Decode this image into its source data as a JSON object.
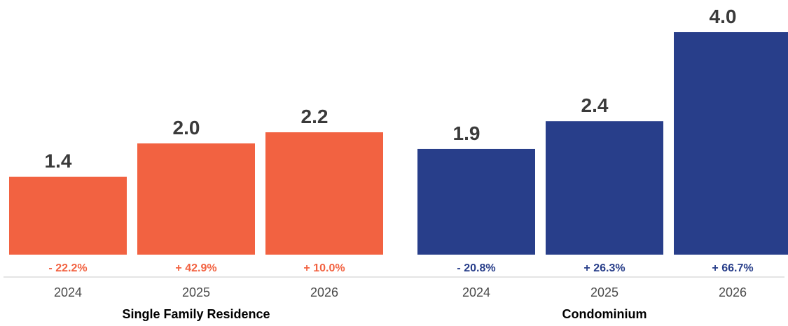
{
  "chart_data": {
    "type": "bar",
    "title": "",
    "xlabel": "",
    "ylabel": "",
    "ylim": [
      0,
      4.0
    ],
    "grid": false,
    "groups": [
      {
        "name": "Single Family Residence",
        "color": "#F26241",
        "bars": [
          {
            "year": "2024",
            "value": 1.4,
            "value_label": "1.4",
            "change": "- 22.2%"
          },
          {
            "year": "2025",
            "value": 2.0,
            "value_label": "2.0",
            "change": "+ 42.9%"
          },
          {
            "year": "2026",
            "value": 2.2,
            "value_label": "2.2",
            "change": "+ 10.0%"
          }
        ]
      },
      {
        "name": "Condominium",
        "color": "#283E8A",
        "bars": [
          {
            "year": "2024",
            "value": 1.9,
            "value_label": "1.9",
            "change": "- 20.8%"
          },
          {
            "year": "2025",
            "value": 2.4,
            "value_label": "2.4",
            "change": "+ 26.3%"
          },
          {
            "year": "2026",
            "value": 4.0,
            "value_label": "4.0",
            "change": "+ 66.7%"
          }
        ]
      }
    ]
  }
}
